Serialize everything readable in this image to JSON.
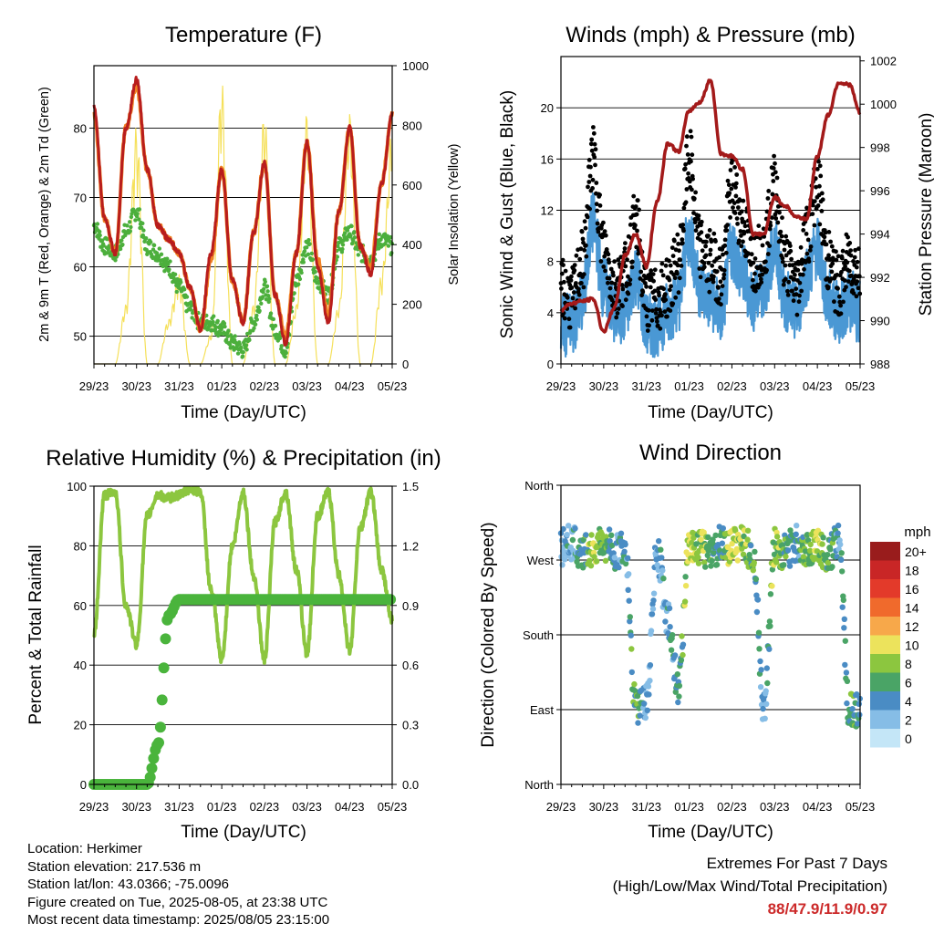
{
  "colors": {
    "temp_2m": "#b81d1d",
    "temp_9m": "#f08224",
    "dewpoint": "#4caf3c",
    "insolation": "#f5e05a",
    "gust": "#000000",
    "wind": "#4a98d4",
    "pressure": "#a31a1a",
    "rh": "#8cc63f",
    "precip": "#4ab43c",
    "extremes": "#cc2a2a"
  },
  "time_ticks": [
    "29/23",
    "30/23",
    "31/23",
    "01/23",
    "02/23",
    "03/23",
    "04/23",
    "05/23"
  ],
  "panels": {
    "temperature": {
      "title": "Temperature (F)",
      "ylabel": "2m & 9m T (Red, Orange) & 2m Td (Green)",
      "y2label": "Solar Insolation (Yellow)",
      "xlabel": "Time (Day/UTC)",
      "yticks": [
        "50",
        "60",
        "70",
        "80"
      ],
      "y2ticks": [
        "0",
        "200",
        "400",
        "600",
        "800",
        "1000"
      ]
    },
    "winds": {
      "title": "Winds (mph) & Pressure (mb)",
      "ylabel": "Sonic Wind & Gust (Blue, Black)",
      "y2label": "Station Pressure (Maroon)",
      "xlabel": "Time (Day/UTC)",
      "yticks": [
        "0",
        "4",
        "8",
        "12",
        "16",
        "20"
      ],
      "y2ticks": [
        "988",
        "990",
        "992",
        "994",
        "996",
        "998",
        "1000",
        "1002"
      ]
    },
    "humidity": {
      "title": "Relative Humidity (%) & Precipitation (in)",
      "ylabel": "Percent & Total Rainfall",
      "xlabel": "Time (Day/UTC)",
      "yticks": [
        "0",
        "20",
        "40",
        "60",
        "80",
        "100"
      ],
      "y2ticks": [
        "0.0",
        "0.3",
        "0.6",
        "0.9",
        "1.2",
        "1.5"
      ]
    },
    "direction": {
      "title": "Wind Direction",
      "ylabel": "Direction (Colored By Speed)",
      "xlabel": "Time (Day/UTC)",
      "yticks": [
        "North",
        "East",
        "South",
        "West",
        "North"
      ],
      "legend_title": "mph",
      "legend_labels": [
        "20+",
        "18",
        "16",
        "14",
        "12",
        "10",
        "8",
        "6",
        "4",
        "2",
        "0"
      ],
      "legend_colors": [
        "#991c1c",
        "#c92626",
        "#e33a2a",
        "#f06a2c",
        "#f7a84a",
        "#ece35c",
        "#8cc63f",
        "#4aa466",
        "#4a8cc4",
        "#86bde6",
        "#c4e6f7"
      ]
    }
  },
  "chart_data": [
    {
      "type": "line",
      "title": "Temperature (F)",
      "xlabel": "Time (Day/UTC)",
      "ylabel": "2m & 9m T (Red, Orange) & 2m Td (Green)",
      "y2label": "Solar Insolation (Yellow)",
      "ylim": [
        46,
        89
      ],
      "y2lim": [
        0,
        1000
      ],
      "x": [
        0,
        0.25,
        0.5,
        0.75,
        1.0,
        1.25,
        1.5,
        1.75,
        2.0,
        2.25,
        2.5,
        2.75,
        3.0,
        3.25,
        3.5,
        3.75,
        4.0,
        4.25,
        4.5,
        4.75,
        5.0,
        5.25,
        5.5,
        5.75,
        6.0,
        6.25,
        6.5,
        6.75,
        7.0
      ],
      "series": [
        {
          "name": "2m T",
          "values": [
            83,
            67,
            62,
            80,
            87,
            74,
            66,
            64,
            62,
            57,
            51,
            62,
            74,
            58,
            52,
            65,
            75,
            56,
            49,
            62,
            78,
            60,
            52,
            68,
            80,
            63,
            59,
            72,
            82
          ]
        },
        {
          "name": "9m T",
          "values": [
            82,
            67,
            62,
            80,
            86,
            74,
            66,
            64,
            62,
            57,
            51,
            61,
            74,
            58,
            52,
            65,
            75,
            56,
            50,
            62,
            78,
            61,
            53,
            68,
            80,
            63,
            60,
            72,
            82
          ]
        },
        {
          "name": "2m Td",
          "values": [
            66,
            63,
            62,
            65,
            68,
            63,
            62,
            60,
            57,
            54,
            52,
            52,
            51,
            49,
            48,
            52,
            57,
            51,
            48,
            58,
            63,
            58,
            56,
            63,
            65,
            62,
            61,
            64,
            63
          ]
        },
        {
          "name": "Solar Insolation",
          "values": [
            0,
            0,
            0,
            200,
            800,
            0,
            0,
            150,
            300,
            0,
            0,
            100,
            950,
            0,
            0,
            200,
            850,
            0,
            0,
            200,
            850,
            0,
            0,
            200,
            850,
            0,
            0,
            300,
            800
          ]
        }
      ]
    },
    {
      "type": "line",
      "title": "Winds (mph) & Pressure (mb)",
      "xlabel": "Time (Day/UTC)",
      "ylabel": "Sonic Wind & Gust (Blue, Black)",
      "y2label": "Station Pressure (Maroon)",
      "ylim": [
        0,
        24
      ],
      "y2lim": [
        988,
        1002.2
      ],
      "x": [
        0,
        0.25,
        0.5,
        0.75,
        1.0,
        1.25,
        1.5,
        1.75,
        2.0,
        2.25,
        2.5,
        2.75,
        3.0,
        3.25,
        3.5,
        3.75,
        4.0,
        4.25,
        4.5,
        4.75,
        5.0,
        5.25,
        5.5,
        5.75,
        6.0,
        6.25,
        6.5,
        6.75,
        7.0
      ],
      "series": [
        {
          "name": "Gust",
          "values": [
            6,
            5,
            8,
            16,
            9,
            6,
            7,
            11,
            5,
            5,
            6,
            8,
            16,
            9,
            8,
            7,
            14,
            11,
            8,
            9,
            14,
            8,
            6,
            10,
            14,
            8,
            6,
            8,
            7
          ]
        },
        {
          "name": "Sonic Wind",
          "values": [
            3,
            3,
            5,
            11,
            6,
            4,
            4,
            7,
            3,
            3,
            4,
            5,
            10,
            6,
            5,
            4,
            9,
            7,
            5,
            6,
            9,
            5,
            4,
            7,
            9,
            5,
            4,
            5,
            4
          ]
        },
        {
          "name": "Station Pressure",
          "values": [
            990.5,
            990.8,
            990.9,
            991.0,
            989.5,
            990.6,
            993.0,
            994.0,
            992.5,
            995.5,
            998.2,
            997.8,
            999.7,
            1000.1,
            1001.1,
            997.7,
            997.6,
            997.0,
            994.0,
            994.0,
            995.7,
            995.3,
            994.8,
            994.7,
            997.6,
            999.5,
            1001.0,
            1000.9,
            999.6
          ]
        }
      ]
    },
    {
      "type": "line",
      "title": "Relative Humidity (%) & Precipitation (in)",
      "xlabel": "Time (Day/UTC)",
      "ylabel": "Percent & Total Rainfall",
      "ylim": [
        0,
        100
      ],
      "y2lim": [
        0,
        1.5
      ],
      "x": [
        0,
        0.25,
        0.5,
        0.75,
        1.0,
        1.25,
        1.5,
        1.75,
        2.0,
        2.25,
        2.5,
        2.75,
        3.0,
        3.25,
        3.5,
        3.75,
        4.0,
        4.25,
        4.5,
        4.75,
        5.0,
        5.25,
        5.5,
        5.75,
        6.0,
        6.25,
        6.5,
        6.75,
        7.0
      ],
      "series": [
        {
          "name": "Relative Humidity",
          "values": [
            50,
            97,
            98,
            60,
            47,
            90,
            97,
            96,
            97,
            99,
            98,
            65,
            42,
            80,
            98,
            70,
            42,
            88,
            98,
            72,
            44,
            90,
            98,
            70,
            45,
            86,
            98,
            72,
            55
          ]
        },
        {
          "name": "Total Precipitation",
          "values": [
            0,
            0,
            0,
            0,
            0,
            0,
            0.2,
            0.85,
            0.93,
            0.93,
            0.93,
            0.93,
            0.93,
            0.93,
            0.93,
            0.93,
            0.93,
            0.93,
            0.93,
            0.93,
            0.93,
            0.93,
            0.93,
            0.93,
            0.93,
            0.93,
            0.93,
            0.93,
            0.93
          ]
        }
      ]
    },
    {
      "type": "scatter",
      "title": "Wind Direction",
      "xlabel": "Time (Day/UTC)",
      "ylabel": "Direction (Colored By Speed)",
      "ylim": [
        0,
        360
      ],
      "x": [
        0,
        0.25,
        0.5,
        0.75,
        1.0,
        1.25,
        1.5,
        1.75,
        2.0,
        2.25,
        2.5,
        2.75,
        3.0,
        3.25,
        3.5,
        3.75,
        4.0,
        4.25,
        4.5,
        4.75,
        5.0,
        5.25,
        5.5,
        5.75,
        6.0,
        6.25,
        6.5,
        6.75,
        7.0
      ],
      "series": [
        {
          "name": "Direction",
          "values": [
            285,
            290,
            280,
            285,
            290,
            280,
            285,
            90,
            100,
            280,
            200,
            120,
            290,
            285,
            280,
            290,
            285,
            290,
            280,
            90,
            285,
            280,
            290,
            285,
            285,
            280,
            290,
            90,
            85
          ]
        },
        {
          "name": "Speed",
          "values": [
            3,
            4,
            5,
            9,
            7,
            4,
            4,
            6,
            3,
            3,
            4,
            5,
            9,
            8,
            7,
            5,
            9,
            8,
            6,
            3,
            8,
            6,
            4,
            7,
            9,
            6,
            4,
            6,
            5
          ]
        }
      ]
    }
  ],
  "info": {
    "location": "Location: Herkimer",
    "elevation": "Station elevation: 217.536 m",
    "latlon": "Station lat/lon: 43.0366; -75.0096",
    "created": "Figure created on Tue, 2025-08-05, at 23:38 UTC",
    "timestamp": "Most recent data timestamp: 2025/08/05 23:15:00"
  },
  "extremes": {
    "line1": "Extremes For Past 7 Days",
    "line2": "(High/Low/Max Wind/Total Precipitation)",
    "values": "88/47.9/11.9/0.97"
  }
}
